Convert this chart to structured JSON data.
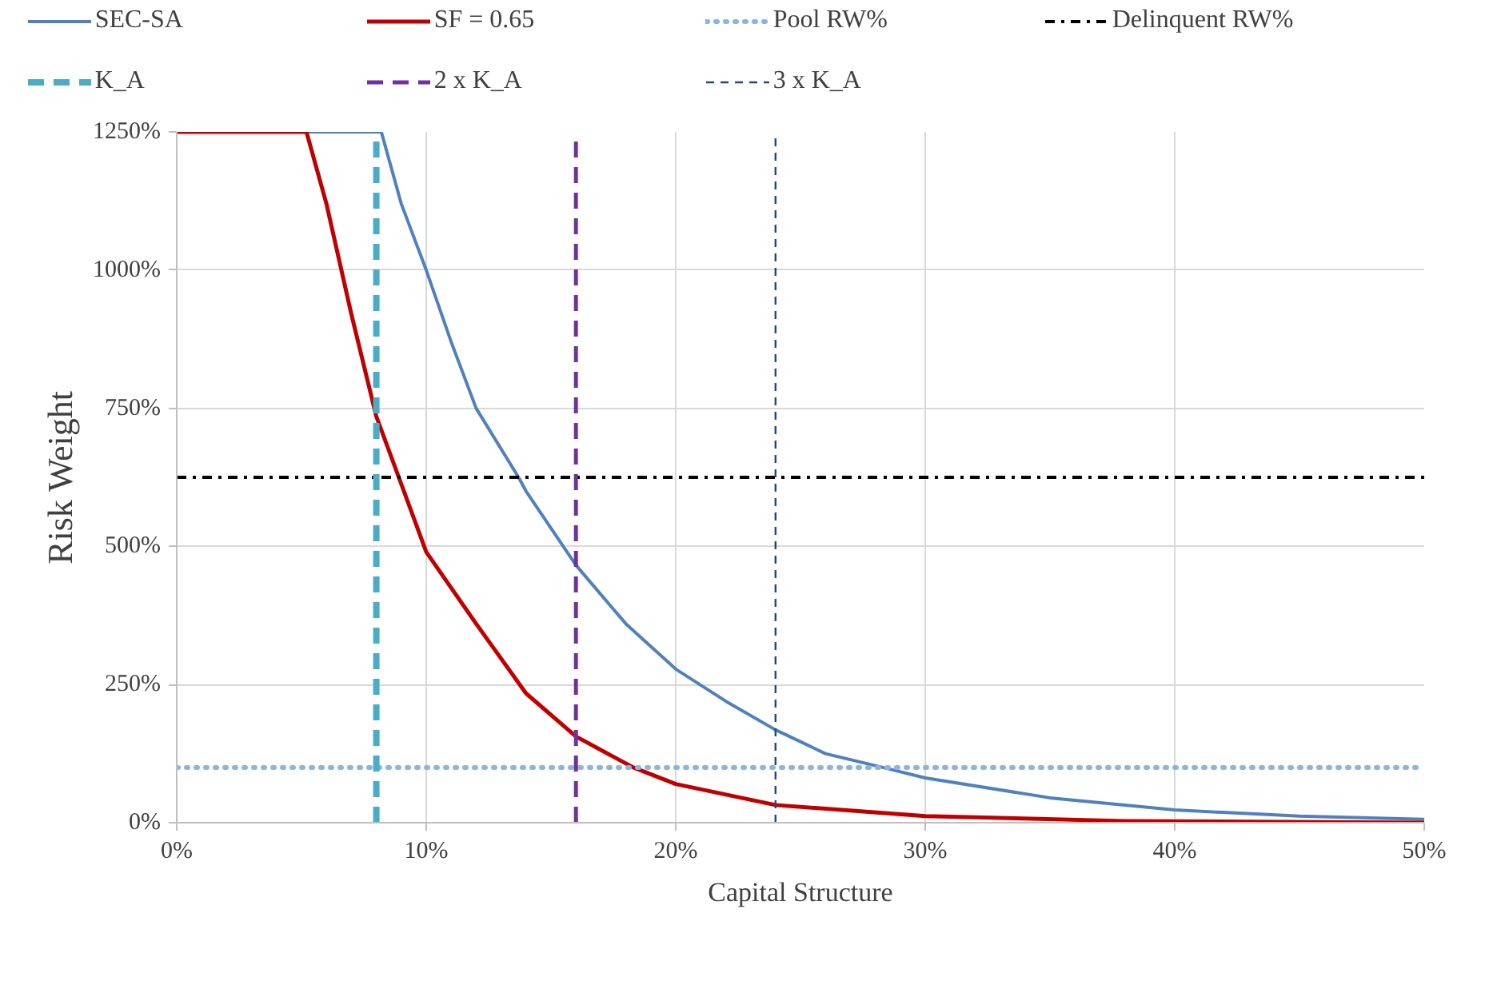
{
  "chart_data": {
    "type": "line",
    "xlabel": "Capital Structure",
    "ylabel": "Risk Weight",
    "xlim": [
      0,
      50
    ],
    "ylim": [
      0,
      1250
    ],
    "xticks": [
      {
        "value": 0,
        "label": "0%"
      },
      {
        "value": 10,
        "label": "10%"
      },
      {
        "value": 20,
        "label": "20%"
      },
      {
        "value": 30,
        "label": "30%"
      },
      {
        "value": 40,
        "label": "40%"
      },
      {
        "value": 50,
        "label": "50%"
      }
    ],
    "yticks": [
      {
        "value": 0,
        "label": "0%"
      },
      {
        "value": 250,
        "label": "250%"
      },
      {
        "value": 500,
        "label": "500%"
      },
      {
        "value": 750,
        "label": "750%"
      },
      {
        "value": 1000,
        "label": "1000%"
      },
      {
        "value": 1250,
        "label": "1250%"
      }
    ],
    "grid": true,
    "legend": "top",
    "marker": "none",
    "series": [
      {
        "name": "SEC-SA",
        "color": "#4f81bd",
        "x": [
          0,
          8.2,
          9,
          10,
          11,
          12,
          13.7,
          14,
          16,
          18,
          20,
          22,
          24,
          26,
          28.3,
          30,
          35,
          40,
          45,
          50
        ],
        "values": [
          1250,
          1250,
          1120,
          1000,
          870,
          750,
          625,
          600,
          466,
          360,
          278,
          220,
          168,
          125,
          100,
          81,
          45,
          23,
          12,
          6
        ]
      },
      {
        "name": "SF = 0.65",
        "color": "#c00000",
        "x": [
          0,
          5.2,
          6,
          7,
          8,
          8.9,
          10,
          12,
          14,
          16,
          18.3,
          20,
          24,
          30,
          38,
          50
        ],
        "values": [
          1250,
          1250,
          1120,
          920,
          735,
          625,
          490,
          360,
          234,
          156,
          100,
          70,
          32,
          12,
          3,
          0
        ]
      }
    ],
    "ref_lines": [
      {
        "axis": "y",
        "value": 100,
        "label": "Pool RW%",
        "color": "#8db3e2",
        "line_style": "dotted"
      },
      {
        "axis": "y",
        "value": 625,
        "label": "Delinquent RW%",
        "color": "#000000",
        "line_style": "dashdot"
      },
      {
        "axis": "x",
        "value": 8,
        "label": "K_A",
        "color": "#4bacc6",
        "line_style": "dashed"
      },
      {
        "axis": "x",
        "value": 16,
        "label": "2 x K_A",
        "color": "#7030a0",
        "line_style": "dashed"
      },
      {
        "axis": "x",
        "value": 24,
        "label": "3 x K_A",
        "color": "#1f497d",
        "line_style": "dashed"
      }
    ]
  }
}
